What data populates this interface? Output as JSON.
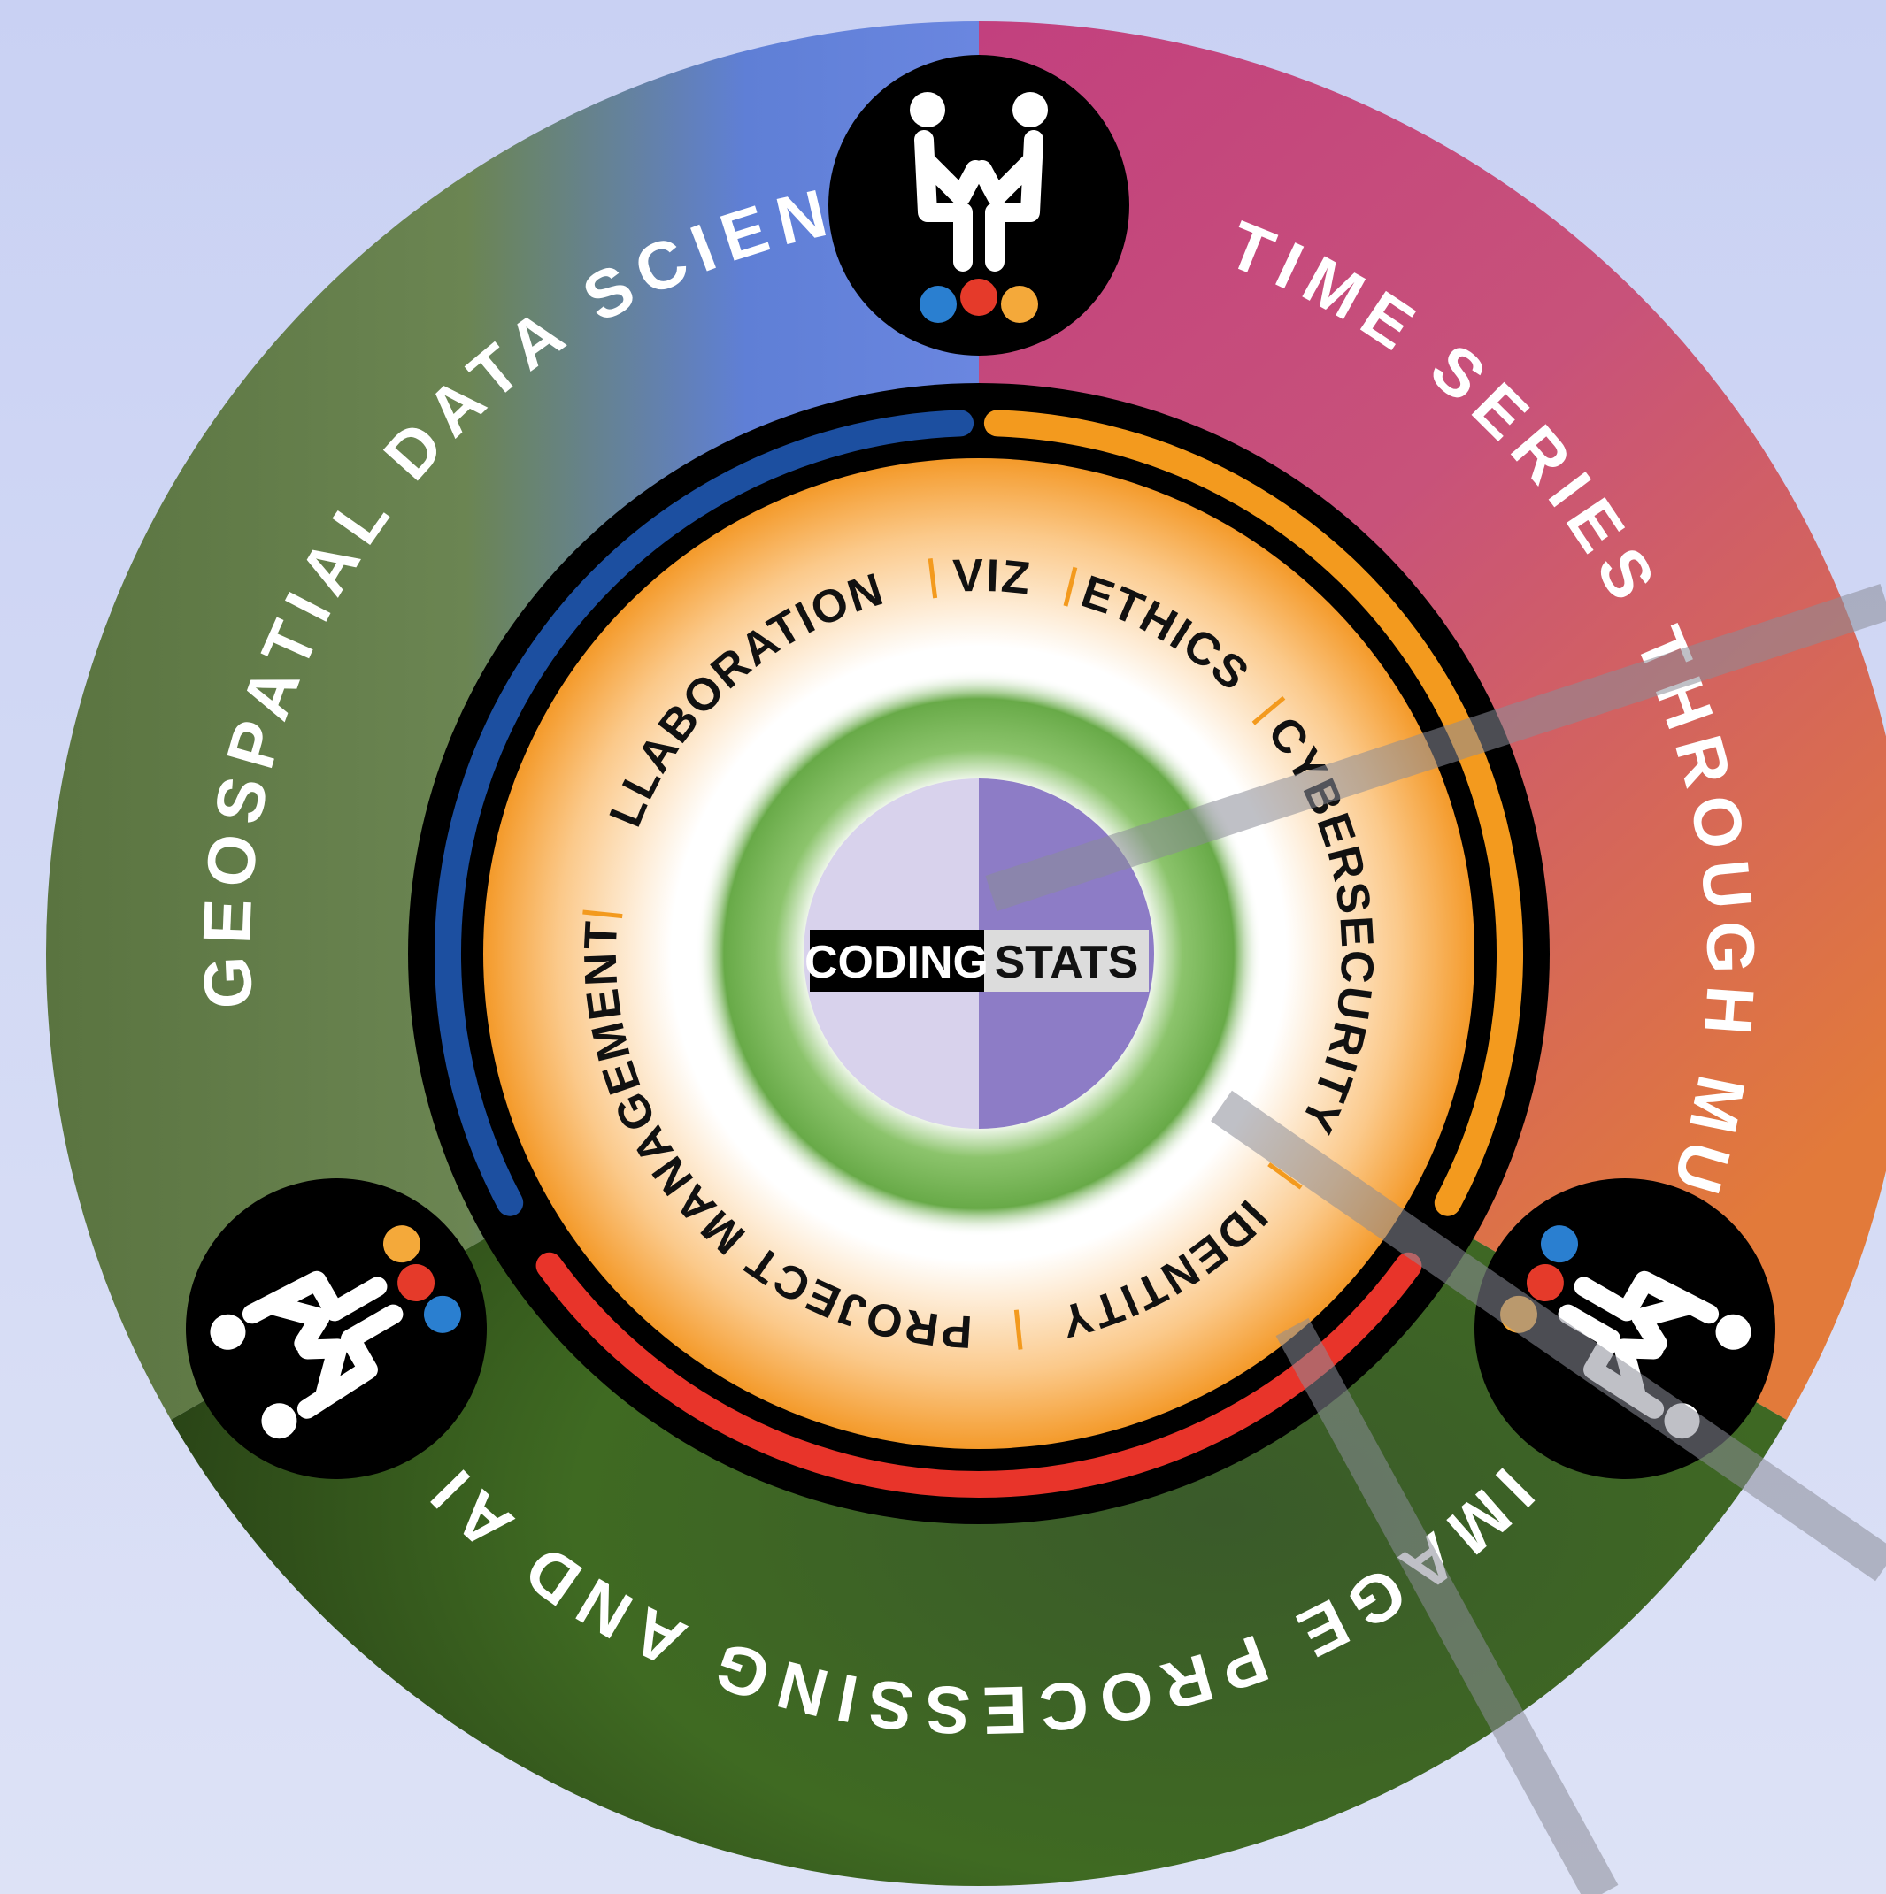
{
  "diagram": {
    "sectors": [
      "GEOSPATIAL DATA SCIENCE",
      "TIME SERIES THROUGH MUSIC",
      "IMAGE PROCESSING AND AI"
    ],
    "skills": [
      "COLLABORATION",
      "VIZ",
      "ETHICS",
      "CYBERSECURITY",
      "IDENTITY",
      "PROJECT MANAGEMENT"
    ],
    "core": [
      "CODING",
      "STATS"
    ]
  }
}
